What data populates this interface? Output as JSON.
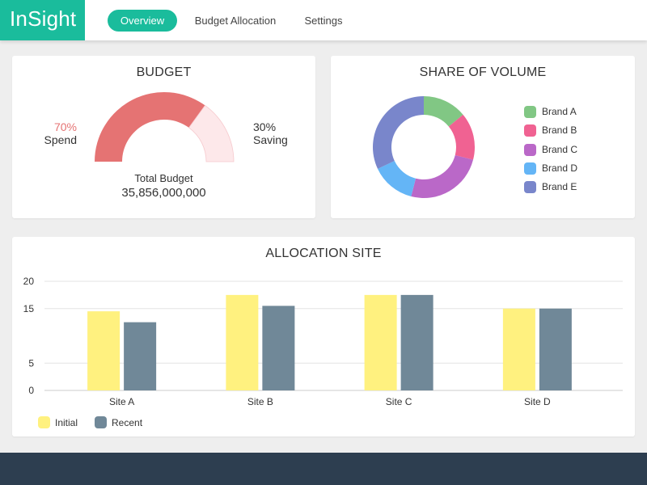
{
  "app": {
    "title": "InSight"
  },
  "nav": {
    "tabs": [
      {
        "label": "Overview",
        "active": true
      },
      {
        "label": "Budget Allocation",
        "active": false
      },
      {
        "label": "Settings",
        "active": false
      }
    ]
  },
  "colors": {
    "accent": "#1abc9c",
    "spend": "#e57373",
    "saving": "#fde8ea",
    "initial": "#fff17f",
    "recent": "#708898",
    "footer": "#2d3e50"
  },
  "budget": {
    "title": "BUDGET",
    "spend_percent": 70,
    "spend_label": "70%",
    "spend_text": "Spend",
    "saving_label": "30%",
    "saving_text": "Saving",
    "total_label": "Total Budget",
    "total_value": "35,856,000,000"
  },
  "volume": {
    "title": "SHARE OF VOLUME",
    "brands": [
      {
        "name": "Brand A",
        "share": 14,
        "color": "#81c784"
      },
      {
        "name": "Brand B",
        "share": 15,
        "color": "#f06292"
      },
      {
        "name": "Brand C",
        "share": 25,
        "color": "#ba68c8"
      },
      {
        "name": "Brand D",
        "share": 14,
        "color": "#64b5f6"
      },
      {
        "name": "Brand E",
        "share": 32,
        "color": "#7986cb"
      }
    ]
  },
  "chart_data": {
    "type": "bar",
    "title": "ALLOCATION SITE",
    "categories": [
      "Site A",
      "Site B",
      "Site C",
      "Site D"
    ],
    "series": [
      {
        "name": "Initial",
        "values": [
          14.5,
          17.5,
          17.5,
          15
        ]
      },
      {
        "name": "Recent",
        "values": [
          12.5,
          15.5,
          17.5,
          15
        ]
      }
    ],
    "y_ticks": [
      "0",
      "5",
      "15",
      "20"
    ],
    "ylim": [
      0,
      20
    ],
    "xlabel": "",
    "ylabel": "",
    "grid": true,
    "legend": "bottom-left"
  }
}
